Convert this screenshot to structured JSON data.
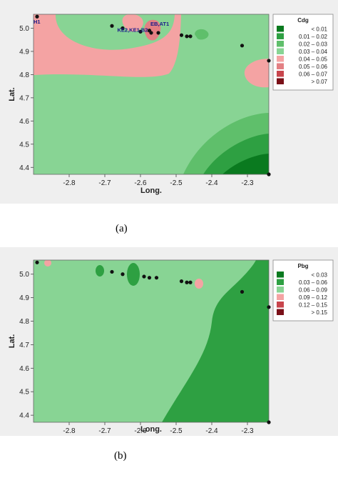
{
  "captions": {
    "a": "(a)",
    "b": "(b)"
  },
  "colors": {
    "dark_red": "#7a1018",
    "mid_red": "#c8454c",
    "red": "#e37f83",
    "pink": "#f4a3a3",
    "light_green": "#88d494",
    "mid_green": "#5fbf6b",
    "green": "#2ea042",
    "dark_green": "#0a7a1f",
    "panel_bg": "#efefef"
  },
  "chart_data": [
    {
      "type": "heatmap",
      "xlabel": "Long.",
      "ylabel": "Lat.",
      "xlim": [
        -2.9,
        -2.24
      ],
      "ylim": [
        4.37,
        5.06
      ],
      "xticks": [
        -2.8,
        -2.7,
        -2.6,
        -2.5,
        -2.4,
        -2.3
      ],
      "yticks": [
        4.4,
        4.5,
        4.6,
        4.7,
        4.8,
        4.9,
        5.0
      ],
      "xtick_labels": [
        "-2.8",
        "-2.7",
        "-2.6",
        "-2.5",
        "-2.4",
        "-2.3"
      ],
      "ytick_labels": [
        "4.4",
        "4.5",
        "4.6",
        "4.7",
        "4.8",
        "4.9",
        "5.0"
      ],
      "legend": {
        "title": "Cdg",
        "placement": "right",
        "entries": [
          "<  0.01",
          "0.01  –  0.02",
          "0.02  –  0.03",
          "0.03  –  0.04",
          "0.04  –  0.05",
          "0.05  –  0.06",
          "0.06  –  0.07",
          ">  0.07"
        ],
        "colors": [
          "#0a7a1f",
          "#2ea042",
          "#5fbf6b",
          "#88d494",
          "#f4a3a3",
          "#e37f83",
          "#c8454c",
          "#7a1018"
        ]
      },
      "points": [
        {
          "x": -2.89,
          "y": 5.05
        },
        {
          "x": -2.68,
          "y": 5.01
        },
        {
          "x": -2.65,
          "y": 5.0
        },
        {
          "x": -2.6,
          "y": 4.985
        },
        {
          "x": -2.575,
          "y": 4.99
        },
        {
          "x": -2.57,
          "y": 4.98
        },
        {
          "x": -2.55,
          "y": 4.98
        },
        {
          "x": -2.485,
          "y": 4.97
        },
        {
          "x": -2.47,
          "y": 4.965
        },
        {
          "x": -2.46,
          "y": 4.965
        },
        {
          "x": -2.315,
          "y": 4.925
        },
        {
          "x": -2.24,
          "y": 4.86
        },
        {
          "x": -2.24,
          "y": 4.37
        }
      ],
      "annotations": [
        {
          "text": "H1",
          "x": -2.9,
          "y": 5.02
        },
        {
          "text": "KE2,KE1,B2",
          "x": -2.665,
          "y": 4.985
        },
        {
          "text": "EB,AT1",
          "x": -2.572,
          "y": 5.01
        }
      ]
    },
    {
      "type": "heatmap",
      "xlabel": "Long.",
      "ylabel": "Lat.",
      "xlim": [
        -2.9,
        -2.24
      ],
      "ylim": [
        4.37,
        5.06
      ],
      "xticks": [
        -2.8,
        -2.7,
        -2.6,
        -2.5,
        -2.4,
        -2.3
      ],
      "yticks": [
        4.4,
        4.5,
        4.6,
        4.7,
        4.8,
        4.9,
        5.0
      ],
      "xtick_labels": [
        "-2.8",
        "-2.7",
        "-2.6",
        "-2.5",
        "-2.4",
        "-2.3"
      ],
      "ytick_labels": [
        "4.4",
        "4.5",
        "4.6",
        "4.7",
        "4.8",
        "4.9",
        "5.0"
      ],
      "legend": {
        "title": "Pbg",
        "placement": "right",
        "entries": [
          "<  0.03",
          "0.03  –  0.06",
          "0.06  –  0.09",
          "0.09  –  0.12",
          "0.12  –  0.15",
          ">  0.15"
        ],
        "colors": [
          "#0a7a1f",
          "#2ea042",
          "#88d494",
          "#f4a3a3",
          "#c8454c",
          "#7a1018"
        ]
      },
      "points": [
        {
          "x": -2.89,
          "y": 5.05
        },
        {
          "x": -2.68,
          "y": 5.01
        },
        {
          "x": -2.65,
          "y": 5.0
        },
        {
          "x": -2.59,
          "y": 4.99
        },
        {
          "x": -2.575,
          "y": 4.985
        },
        {
          "x": -2.555,
          "y": 4.985
        },
        {
          "x": -2.485,
          "y": 4.97
        },
        {
          "x": -2.47,
          "y": 4.965
        },
        {
          "x": -2.46,
          "y": 4.965
        },
        {
          "x": -2.315,
          "y": 4.925
        },
        {
          "x": -2.24,
          "y": 4.86
        },
        {
          "x": -2.24,
          "y": 4.37
        }
      ]
    }
  ]
}
